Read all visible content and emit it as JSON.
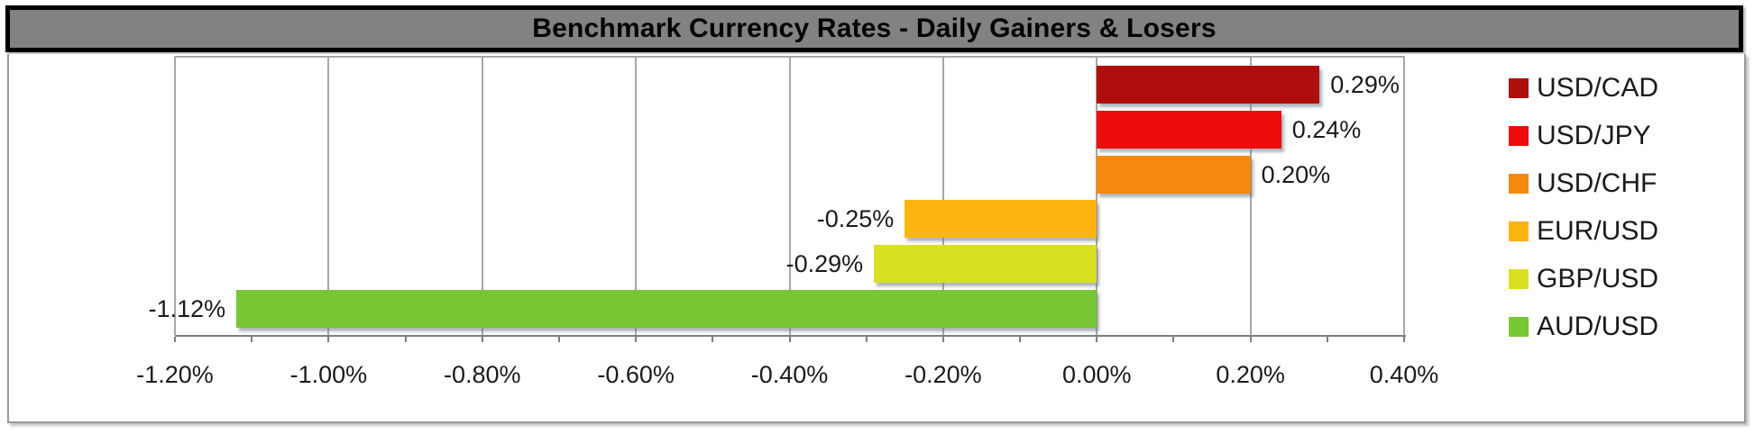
{
  "title": "Benchmark Currency Rates - Daily Gainers & Losers",
  "colors": {
    "title_bar_bg": "#828282",
    "title_bar_border": "#000000",
    "title_text": "#000000",
    "background": "#ffffff",
    "gridline": "#a6a6a6",
    "axis_line": "#7f7f7f",
    "chart_border": "#9a9a9a",
    "label_text": "#1a1a1a"
  },
  "chart_data": {
    "type": "bar",
    "orientation": "horizontal",
    "title": "Benchmark Currency Rates - Daily Gainers & Losers",
    "categories": [
      "USD/CAD",
      "USD/JPY",
      "USD/CHF",
      "EUR/USD",
      "GBP/USD",
      "AUD/USD"
    ],
    "values": [
      0.29,
      0.24,
      0.2,
      -0.25,
      -0.29,
      -1.12
    ],
    "value_labels": [
      "0.29%",
      "0.24%",
      "0.20%",
      "-0.25%",
      "-0.29%",
      "-1.12%"
    ],
    "bar_colors": [
      "#B00D0D",
      "#EE0C0C",
      "#F6870F",
      "#FCB410",
      "#D9E021",
      "#77C734"
    ],
    "xlabel": "",
    "ylabel": "",
    "xlim": [
      -1.2,
      0.4
    ],
    "x_ticks": [
      -1.2,
      -1.0,
      -0.8,
      -0.6,
      -0.4,
      -0.2,
      0.0,
      0.2,
      0.4
    ],
    "x_tick_labels": [
      "-1.20%",
      "-1.00%",
      "-0.80%",
      "-0.60%",
      "-0.40%",
      "-0.20%",
      "0.00%",
      "0.20%",
      "0.40%"
    ],
    "minor_tick_step": 0.1,
    "grid": true,
    "legend_position": "right",
    "legend": [
      {
        "label": "USD/CAD",
        "color": "#B00D0D"
      },
      {
        "label": "USD/JPY",
        "color": "#EE0C0C"
      },
      {
        "label": "USD/CHF",
        "color": "#F6870F"
      },
      {
        "label": "EUR/USD",
        "color": "#FCB410"
      },
      {
        "label": "GBP/USD",
        "color": "#D9E021"
      },
      {
        "label": "AUD/USD",
        "color": "#77C734"
      }
    ]
  }
}
